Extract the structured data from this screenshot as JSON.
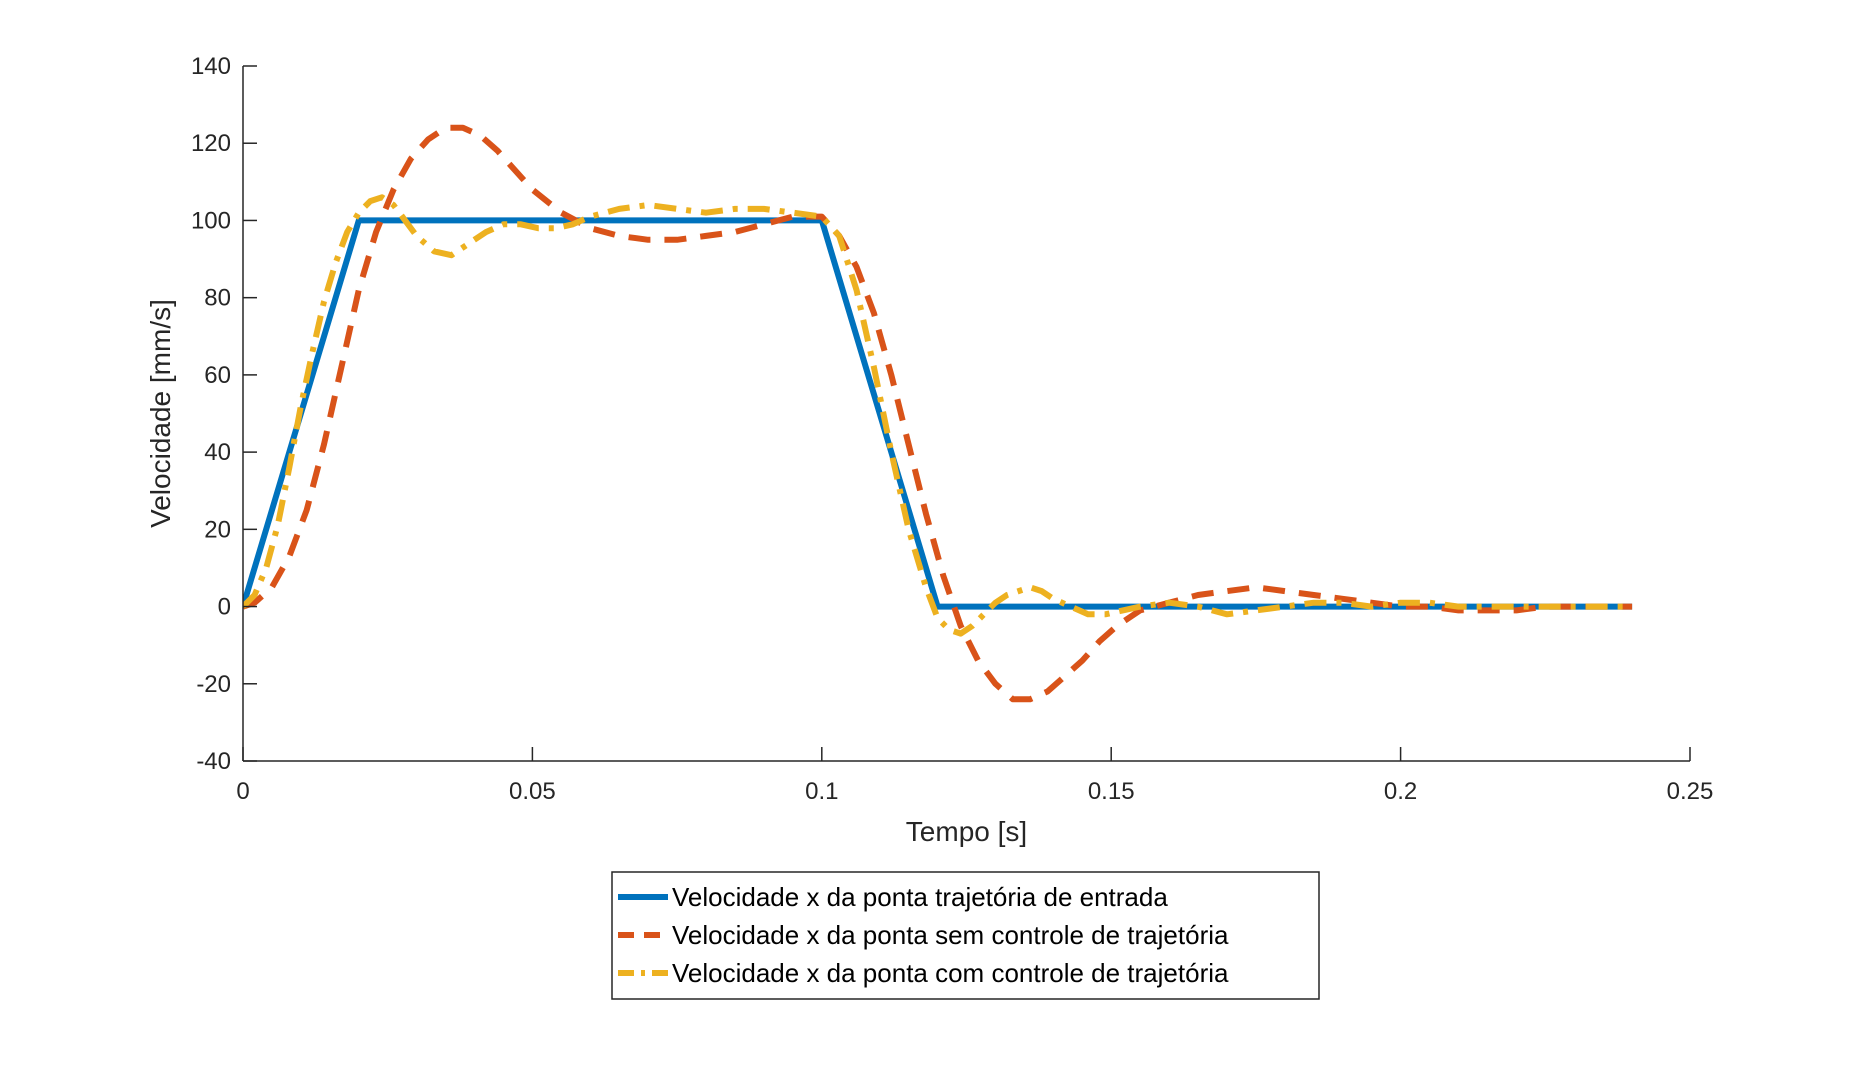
{
  "chart_data": {
    "type": "line",
    "title": "",
    "xlabel": "Tempo [s]",
    "ylabel": "Velocidade [mm/s]",
    "xlim": [
      0,
      0.25
    ],
    "ylim": [
      -40,
      140
    ],
    "xticks": [
      0,
      0.05,
      0.1,
      0.15,
      0.2,
      0.25
    ],
    "xtick_labels": [
      "0",
      "0.05",
      "0.1",
      "0.15",
      "0.2",
      "0.25"
    ],
    "yticks": [
      -40,
      -20,
      0,
      20,
      40,
      60,
      80,
      100,
      120,
      140
    ],
    "ytick_labels": [
      "-40",
      "-20",
      "0",
      "20",
      "40",
      "60",
      "80",
      "100",
      "120",
      "140"
    ],
    "grid": false,
    "legend_position": "bottom-center",
    "series": [
      {
        "name": "Velocidade x da ponta trajetória de entrada",
        "color": "#0072BD",
        "style": "solid",
        "x": [
          0,
          0.02,
          0.1,
          0.12,
          0.24
        ],
        "y": [
          0,
          100,
          100,
          0,
          0
        ]
      },
      {
        "name": "Velocidade x da ponta sem controle de trajetória",
        "color": "#D95319",
        "style": "dashed",
        "x": [
          0,
          0.002,
          0.005,
          0.008,
          0.011,
          0.014,
          0.017,
          0.02,
          0.023,
          0.026,
          0.029,
          0.032,
          0.035,
          0.038,
          0.041,
          0.044,
          0.047,
          0.05,
          0.055,
          0.06,
          0.065,
          0.07,
          0.075,
          0.08,
          0.085,
          0.09,
          0.095,
          0.1,
          0.103,
          0.106,
          0.109,
          0.112,
          0.115,
          0.118,
          0.121,
          0.124,
          0.127,
          0.13,
          0.133,
          0.136,
          0.139,
          0.142,
          0.145,
          0.148,
          0.151,
          0.155,
          0.16,
          0.165,
          0.17,
          0.175,
          0.18,
          0.185,
          0.19,
          0.195,
          0.2,
          0.205,
          0.21,
          0.215,
          0.22,
          0.225,
          0.23,
          0.235,
          0.24
        ],
        "y": [
          0,
          1,
          5,
          13,
          25,
          42,
          62,
          82,
          97,
          108,
          116,
          121,
          124,
          124,
          122,
          118,
          113,
          108,
          102,
          98,
          96,
          95,
          95,
          96,
          97,
          99,
          101,
          101,
          96,
          88,
          76,
          60,
          42,
          24,
          8,
          -5,
          -14,
          -20,
          -24,
          -24,
          -22,
          -18,
          -14,
          -9,
          -5,
          -1,
          1,
          3,
          4,
          5,
          4,
          3,
          2,
          1,
          0,
          0,
          -1,
          -1,
          -1,
          0,
          0,
          0,
          0
        ]
      },
      {
        "name": "Velocidade x da ponta com controle de trajetória",
        "color": "#EDB120",
        "style": "dashdot",
        "x": [
          0,
          0.002,
          0.004,
          0.006,
          0.008,
          0.01,
          0.012,
          0.014,
          0.016,
          0.018,
          0.02,
          0.022,
          0.024,
          0.026,
          0.028,
          0.03,
          0.033,
          0.036,
          0.039,
          0.042,
          0.045,
          0.048,
          0.051,
          0.054,
          0.057,
          0.06,
          0.065,
          0.07,
          0.075,
          0.08,
          0.085,
          0.09,
          0.095,
          0.1,
          0.103,
          0.106,
          0.109,
          0.112,
          0.115,
          0.118,
          0.12,
          0.122,
          0.124,
          0.126,
          0.128,
          0.13,
          0.132,
          0.134,
          0.136,
          0.138,
          0.14,
          0.143,
          0.146,
          0.149,
          0.152,
          0.155,
          0.16,
          0.165,
          0.17,
          0.175,
          0.18,
          0.185,
          0.19,
          0.195,
          0.2,
          0.205,
          0.21,
          0.215,
          0.22,
          0.225,
          0.23,
          0.235,
          0.24
        ],
        "y": [
          0,
          3,
          10,
          21,
          36,
          52,
          66,
          79,
          89,
          97,
          102,
          105,
          106,
          104,
          100,
          96,
          92,
          91,
          94,
          97,
          99,
          99,
          98,
          98,
          99,
          101,
          103,
          104,
          103,
          102,
          103,
          103,
          102,
          101,
          96,
          82,
          62,
          40,
          20,
          5,
          -3,
          -6,
          -7,
          -5,
          -2,
          1,
          3,
          4,
          5,
          4,
          2,
          0,
          -2,
          -2,
          -1,
          0,
          1,
          0,
          -2,
          -1,
          0,
          1,
          1,
          0,
          1,
          1,
          0,
          0,
          0,
          0,
          0,
          0,
          0
        ]
      }
    ]
  }
}
